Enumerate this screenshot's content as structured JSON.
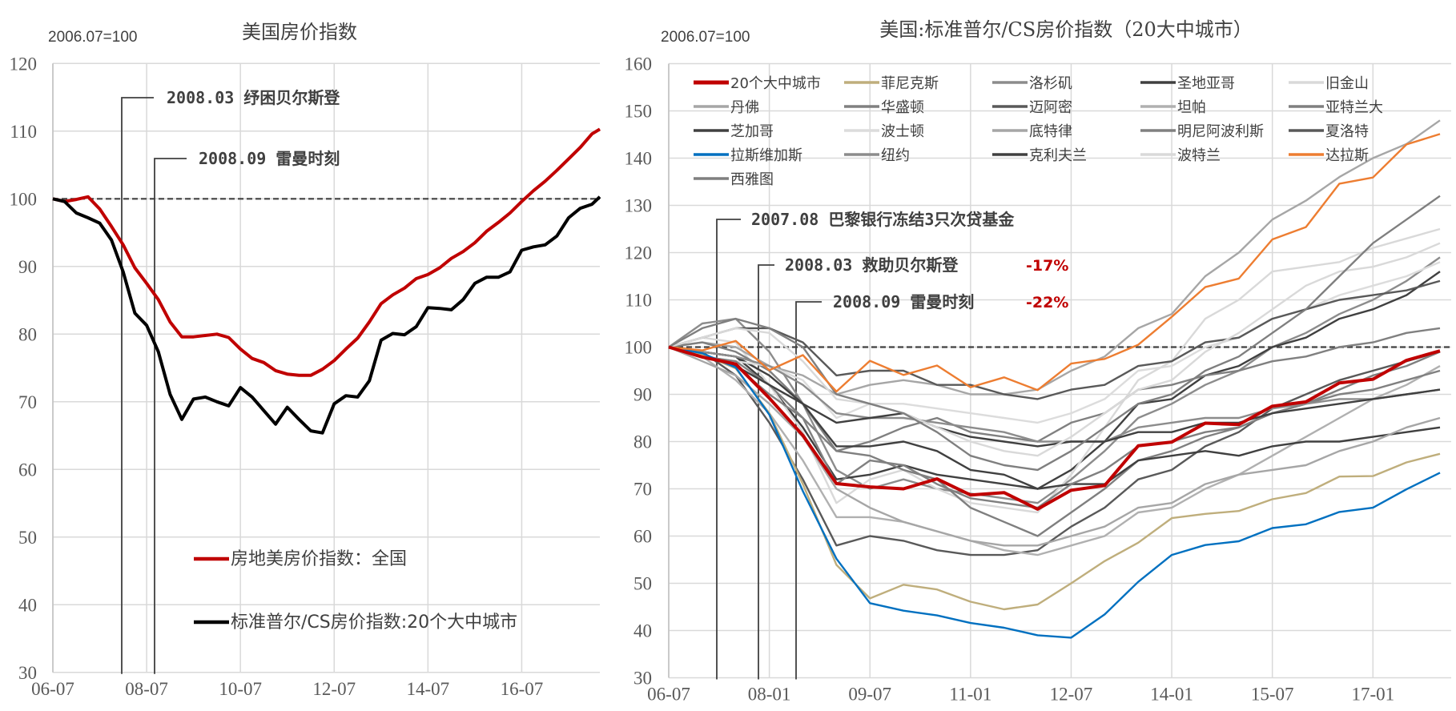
{
  "chart_data": [
    {
      "type": "line",
      "title": "美国房价指数",
      "base_label": "2006.07=100",
      "xlim": [
        "2006-07",
        "2018-03"
      ],
      "ylim": [
        30,
        120
      ],
      "y_ticks": [
        30,
        40,
        50,
        60,
        70,
        80,
        90,
        100,
        110,
        120
      ],
      "x_ticks": [
        "06-07",
        "08-07",
        "10-07",
        "12-07",
        "14-07",
        "16-07"
      ],
      "x_tick_dates": [
        "2006-07",
        "2008-07",
        "2010-07",
        "2012-07",
        "2014-07",
        "2016-07"
      ],
      "grid": true,
      "reference_line": 100,
      "legend_position": "bottom-center",
      "x": [
        "2006-07",
        "2006-10",
        "2007-01",
        "2007-04",
        "2007-07",
        "2007-10",
        "2008-01",
        "2008-04",
        "2008-07",
        "2008-10",
        "2009-01",
        "2009-04",
        "2009-07",
        "2009-10",
        "2010-01",
        "2010-04",
        "2010-07",
        "2010-10",
        "2011-01",
        "2011-04",
        "2011-07",
        "2011-10",
        "2012-01",
        "2012-04",
        "2012-07",
        "2012-10",
        "2013-01",
        "2013-04",
        "2013-07",
        "2013-10",
        "2014-01",
        "2014-04",
        "2014-07",
        "2014-10",
        "2015-01",
        "2015-04",
        "2015-07",
        "2015-10",
        "2016-01",
        "2016-04",
        "2016-07",
        "2016-10",
        "2017-01",
        "2017-04",
        "2017-07",
        "2017-10",
        "2018-01",
        "2018-03"
      ],
      "series": [
        {
          "name": "房地美房价指数：全国",
          "color": "#c00000",
          "values": [
            100,
            99.6,
            99.9,
            100.3,
            98.5,
            95.9,
            93.2,
            89.8,
            87.5,
            85.1,
            81.8,
            79.6,
            79.6,
            79.8,
            80.0,
            79.5,
            77.8,
            76.4,
            75.8,
            74.6,
            74.1,
            73.9,
            73.9,
            74.8,
            76.1,
            77.8,
            79.4,
            81.8,
            84.5,
            85.8,
            86.8,
            88.2,
            88.8,
            89.8,
            91.2,
            92.2,
            93.5,
            95.2,
            96.5,
            97.9,
            99.6,
            101.2,
            102.6,
            104.2,
            105.9,
            107.6,
            109.6,
            110.3
          ]
        },
        {
          "name": "标准普尔/CS房价指数:20个大中城市",
          "color": "#000000",
          "values": [
            100,
            99.6,
            97.9,
            97.2,
            96.4,
            93.9,
            89.2,
            83.1,
            81.3,
            77.4,
            71.1,
            67.4,
            70.4,
            70.7,
            70.0,
            69.4,
            72.1,
            70.7,
            68.7,
            66.7,
            69.2,
            67.4,
            65.7,
            65.4,
            69.7,
            70.9,
            70.7,
            73.1,
            79.1,
            80.1,
            79.9,
            81.1,
            83.9,
            83.8,
            83.6,
            85.1,
            87.5,
            88.4,
            88.4,
            89.2,
            92.4,
            92.9,
            93.2,
            94.5,
            97.2,
            98.6,
            99.2,
            100.3
          ]
        }
      ],
      "annotations": [
        {
          "date": "2008-03",
          "text": "2008.03 纾困贝尔斯登"
        },
        {
          "date": "2008-09",
          "text": "2008.09 雷曼时刻"
        }
      ]
    },
    {
      "type": "line",
      "title": "美国:标准普尔/CS房价指数（20大中城市）",
      "base_label": "2006.07=100",
      "xlim": [
        "2006-07",
        "2018-03"
      ],
      "ylim": [
        30,
        160
      ],
      "y_ticks": [
        30,
        40,
        50,
        60,
        70,
        80,
        90,
        100,
        110,
        120,
        130,
        140,
        150,
        160
      ],
      "x_ticks": [
        "06-07",
        "08-01",
        "09-07",
        "11-01",
        "12-07",
        "14-01",
        "15-07",
        "17-01"
      ],
      "x_tick_dates": [
        "2006-07",
        "2008-01",
        "2009-07",
        "2011-01",
        "2012-07",
        "2014-01",
        "2015-07",
        "2017-01"
      ],
      "grid": true,
      "reference_line": 100,
      "legend_position": "top",
      "x": [
        "2006-07",
        "2007-01",
        "2007-07",
        "2008-01",
        "2008-07",
        "2009-01",
        "2009-07",
        "2010-01",
        "2010-07",
        "2011-01",
        "2011-07",
        "2012-01",
        "2012-07",
        "2013-01",
        "2013-07",
        "2014-01",
        "2014-07",
        "2015-01",
        "2015-07",
        "2016-01",
        "2016-07",
        "2017-01",
        "2017-07",
        "2018-01"
      ],
      "series": [
        {
          "name": "20个大中城市",
          "color": "#c00000",
          "highlight": true,
          "values": [
            100,
            97.9,
            96.4,
            89.2,
            81.3,
            71.1,
            70.4,
            70.0,
            72.1,
            68.7,
            69.2,
            65.7,
            69.7,
            70.7,
            79.1,
            79.9,
            83.9,
            83.6,
            87.5,
            88.4,
            92.4,
            93.2,
            97.2,
            99.2
          ]
        },
        {
          "name": "菲尼克斯",
          "color": "#bfae7c",
          "highlight": true,
          "values": [
            100,
            98.5,
            95.5,
            86,
            71,
            53.9,
            46.8,
            49.7,
            48.7,
            46.1,
            44.5,
            45.5,
            50.0,
            54.7,
            58.6,
            63.8,
            64.7,
            65.3,
            67.8,
            69.1,
            72.6,
            72.7,
            75.6,
            77.4
          ]
        },
        {
          "name": "洛杉矶",
          "color": "#8c8c8c",
          "values": [
            100,
            105,
            106,
            99,
            88,
            74,
            70,
            72,
            70,
            69,
            68,
            67,
            72,
            78,
            85,
            88,
            92,
            95,
            100,
            103,
            107,
            110,
            114,
            119
          ]
        },
        {
          "name": "圣地亚哥",
          "color": "#404040",
          "values": [
            100,
            99,
            98,
            92,
            83,
            72,
            73,
            75,
            73,
            72,
            71,
            70,
            74,
            80,
            88,
            89,
            94,
            96,
            100,
            102,
            106,
            108,
            111,
            116
          ]
        },
        {
          "name": "旧金山",
          "color": "#d9d9d9",
          "values": [
            100,
            102,
            101,
            92,
            82,
            67,
            72,
            74,
            70,
            67,
            66,
            65,
            73,
            83,
            93,
            97,
            106,
            110,
            116,
            117,
            118,
            121,
            123,
            125
          ]
        },
        {
          "name": "丹佛",
          "color": "#a6a6a6",
          "values": [
            100,
            101,
            100,
            96,
            94,
            90,
            92,
            93,
            92,
            90,
            90,
            91,
            95,
            98,
            104,
            107,
            115,
            120,
            127,
            131,
            136,
            140,
            143,
            148
          ]
        },
        {
          "name": "华盛顿",
          "color": "#808080",
          "values": [
            100,
            98,
            96,
            90,
            85,
            78,
            80,
            83,
            85,
            82,
            81,
            80,
            84,
            86,
            91,
            92,
            94,
            95,
            97,
            98,
            100,
            101,
            103,
            104
          ]
        },
        {
          "name": "迈阿密",
          "color": "#595959",
          "values": [
            100,
            99,
            94,
            84,
            72,
            58,
            60,
            59,
            57,
            56,
            56,
            57,
            62,
            66,
            72,
            74,
            79,
            82,
            87,
            90,
            93,
            95,
            97,
            99
          ]
        },
        {
          "name": "坦帕",
          "color": "#b0b0b0",
          "values": [
            100,
            98,
            93,
            86,
            76,
            64,
            64,
            63,
            61,
            59,
            57,
            56,
            58,
            60,
            65,
            66,
            70,
            73,
            77,
            81,
            85,
            89,
            92,
            96
          ]
        },
        {
          "name": "亚特兰大",
          "color": "#7f7f7f",
          "values": [
            100,
            101,
            99,
            95,
            88,
            78,
            77,
            74,
            72,
            66,
            63,
            60,
            65,
            70,
            76,
            78,
            81,
            83,
            86,
            88,
            91,
            94,
            96,
            99
          ]
        },
        {
          "name": "芝加哥",
          "color": "#404040",
          "values": [
            100,
            99,
            98,
            94,
            88,
            79,
            79,
            80,
            78,
            74,
            73,
            70,
            71,
            71,
            76,
            77,
            78,
            77,
            79,
            80,
            80,
            81,
            82,
            83
          ]
        },
        {
          "name": "波士顿",
          "color": "#dcdcdc",
          "values": [
            100,
            98,
            97,
            96,
            93,
            85,
            88,
            88,
            87,
            86,
            85,
            84,
            86,
            89,
            95,
            96,
            100,
            102,
            106,
            108,
            111,
            113,
            115,
            118
          ]
        },
        {
          "name": "底特律",
          "color": "#a6a6a6",
          "values": [
            100,
            97,
            94,
            88,
            81,
            70,
            66,
            63,
            61,
            59,
            58,
            58,
            60,
            62,
            66,
            67,
            71,
            73,
            74,
            75,
            78,
            80,
            83,
            85
          ]
        },
        {
          "name": "明尼阿波利斯",
          "color": "#808080",
          "values": [
            100,
            98,
            97,
            92,
            85,
            71,
            76,
            75,
            71,
            68,
            67,
            66,
            71,
            74,
            79,
            80,
            82,
            83,
            86,
            88,
            90,
            91,
            93,
            95
          ]
        },
        {
          "name": "夏洛特",
          "color": "#595959",
          "values": [
            100,
            102,
            104,
            104,
            101,
            94,
            95,
            95,
            92,
            92,
            90,
            89,
            91,
            92,
            96,
            97,
            101,
            102,
            106,
            108,
            110,
            111,
            112,
            114
          ]
        },
        {
          "name": "拉斯维加斯",
          "color": "#0070c0",
          "highlight": true,
          "values": [
            100,
            98.7,
            95.7,
            85.7,
            69.5,
            55.2,
            45.8,
            44.2,
            43.2,
            41.6,
            40.6,
            39.0,
            38.5,
            43.4,
            50.3,
            56.0,
            58.1,
            58.9,
            61.7,
            62.5,
            65.1,
            66.0,
            69.9,
            73.4
          ]
        },
        {
          "name": "纽约",
          "color": "#8c8c8c",
          "values": [
            100,
            99,
            98,
            96,
            92,
            86,
            85,
            85,
            84,
            83,
            82,
            80,
            80,
            80,
            83,
            84,
            85,
            85,
            87,
            88,
            89,
            89,
            90,
            91
          ]
        },
        {
          "name": "克利夫兰",
          "color": "#404040",
          "values": [
            100,
            98,
            96,
            92,
            88,
            84,
            85,
            86,
            83,
            81,
            80,
            79,
            80,
            80,
            82,
            82,
            84,
            84,
            86,
            87,
            88,
            89,
            90,
            91
          ]
        },
        {
          "name": "波特兰",
          "color": "#d9d9d9",
          "values": [
            100,
            102,
            104,
            103,
            97,
            89,
            88,
            86,
            83,
            80,
            78,
            77,
            81,
            86,
            91,
            93,
            99,
            103,
            108,
            113,
            116,
            117,
            119,
            122
          ]
        },
        {
          "name": "达拉斯",
          "color": "#ed7d31",
          "highlight": true,
          "values": [
            100,
            99.3,
            101.3,
            95.1,
            98.3,
            90.6,
            97.1,
            94.1,
            96.1,
            91.5,
            93.6,
            90.9,
            96.5,
            97.5,
            100.5,
            106.4,
            112.7,
            114.5,
            122.8,
            125.4,
            134.6,
            135.9,
            142.9,
            145.1
          ]
        },
        {
          "name": "西雅图",
          "color": "#7f7f7f",
          "values": [
            100,
            104,
            106,
            104,
            100,
            90,
            88,
            86,
            82,
            77,
            75,
            74,
            78,
            83,
            88,
            90,
            95,
            98,
            103,
            108,
            115,
            122,
            127,
            132
          ]
        }
      ],
      "annotations": [
        {
          "date": "2007-08",
          "text": "2007.08 巴黎银行冻结3只次贷基金",
          "change": ""
        },
        {
          "date": "2008-03",
          "text": "2008.03 救助贝尔斯登",
          "change": "-17%"
        },
        {
          "date": "2008-09",
          "text": "2008.09 雷曼时刻",
          "change": "-22%"
        }
      ]
    }
  ]
}
